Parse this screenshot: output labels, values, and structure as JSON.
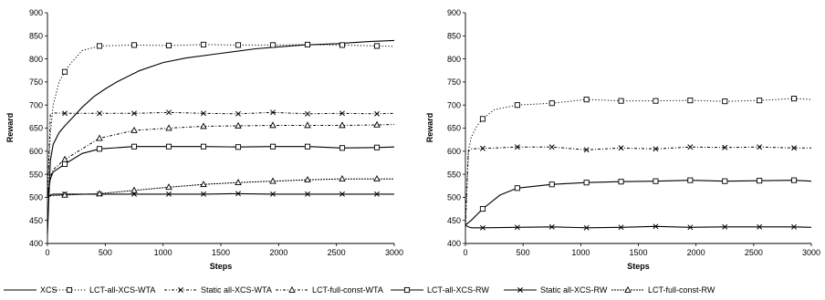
{
  "chart_data": [
    {
      "type": "line",
      "title": "",
      "xlabel": "Steps",
      "ylabel": "Reward",
      "xlim": [
        0,
        3000
      ],
      "ylim": [
        400,
        900
      ],
      "x_ticks": [
        "0",
        "500",
        "1000",
        "1500",
        "2000",
        "2500",
        "3000"
      ],
      "y_ticks": [
        "400",
        "450",
        "500",
        "550",
        "600",
        "650",
        "700",
        "750",
        "800",
        "850",
        "900"
      ],
      "grid": false,
      "series": [
        {
          "name": "XCS",
          "x": [
            0,
            25,
            50,
            100,
            150,
            200,
            300,
            400,
            500,
            600,
            800,
            1000,
            1200,
            1500,
            1800,
            2000,
            2200,
            2500,
            2800,
            3000
          ],
          "y": [
            420,
            580,
            615,
            640,
            655,
            668,
            695,
            718,
            735,
            750,
            775,
            792,
            802,
            812,
            822,
            826,
            830,
            833,
            838,
            840
          ]
        },
        {
          "name": "LCT-all-XCS-WTA",
          "x": [
            0,
            25,
            50,
            100,
            150,
            200,
            300,
            450,
            750,
            1050,
            1350,
            1650,
            1950,
            2250,
            2550,
            2850,
            3000
          ],
          "y": [
            500,
            640,
            700,
            750,
            772,
            790,
            818,
            828,
            830,
            829,
            831,
            830,
            830,
            831,
            830,
            828,
            827
          ]
        },
        {
          "name": "Static all-XCS-WTA",
          "x": [
            0,
            25,
            50,
            150,
            450,
            750,
            1050,
            1350,
            1650,
            1950,
            2250,
            2550,
            2850,
            3000
          ],
          "y": [
            500,
            680,
            683,
            682,
            682,
            682,
            684,
            682,
            681,
            684,
            681,
            682,
            681,
            682
          ]
        },
        {
          "name": "LCT-full-const-WTA",
          "x": [
            0,
            25,
            50,
            150,
            450,
            750,
            1050,
            1350,
            1650,
            1950,
            2250,
            2550,
            2850,
            3000
          ],
          "y": [
            500,
            545,
            560,
            582,
            628,
            645,
            650,
            654,
            655,
            656,
            656,
            656,
            657,
            658
          ]
        },
        {
          "name": "LCT-all-XCS-RW",
          "x": [
            0,
            25,
            50,
            150,
            300,
            450,
            750,
            1050,
            1350,
            1650,
            1950,
            2250,
            2550,
            2850,
            3000
          ],
          "y": [
            500,
            540,
            555,
            572,
            595,
            605,
            610,
            610,
            610,
            609,
            610,
            610,
            607,
            608,
            609
          ]
        },
        {
          "name": "Static all-XCS-RW",
          "x": [
            0,
            25,
            50,
            150,
            450,
            750,
            1050,
            1350,
            1650,
            1950,
            2250,
            2550,
            2850,
            3000
          ],
          "y": [
            500,
            505,
            507,
            507,
            507,
            507,
            507,
            507,
            508,
            507,
            507,
            507,
            507,
            507
          ]
        },
        {
          "name": "LCT-full-const-RW",
          "x": [
            0,
            25,
            50,
            150,
            450,
            750,
            1050,
            1350,
            1650,
            1950,
            2250,
            2550,
            2850,
            3000
          ],
          "y": [
            500,
            503,
            504,
            505,
            508,
            515,
            522,
            528,
            532,
            535,
            538,
            540,
            540,
            540
          ]
        }
      ]
    },
    {
      "type": "line",
      "title": "",
      "xlabel": "Steps",
      "ylabel": "Reward",
      "xlim": [
        0,
        3000
      ],
      "ylim": [
        400,
        900
      ],
      "x_ticks": [
        "0",
        "500",
        "1000",
        "1500",
        "2000",
        "2500",
        "3000"
      ],
      "y_ticks": [
        "400",
        "450",
        "500",
        "550",
        "600",
        "650",
        "700",
        "750",
        "800",
        "850",
        "900"
      ],
      "grid": false,
      "series": [
        {
          "name": "LCT-all-XCS-WTA",
          "x": [
            0,
            25,
            50,
            100,
            150,
            250,
            450,
            750,
            1050,
            1350,
            1650,
            1950,
            2250,
            2550,
            2850,
            3000
          ],
          "y": [
            440,
            600,
            630,
            655,
            670,
            690,
            700,
            704,
            712,
            709,
            709,
            710,
            708,
            710,
            714,
            712
          ]
        },
        {
          "name": "Static all-XCS-WTA",
          "x": [
            0,
            25,
            50,
            150,
            450,
            750,
            1050,
            1350,
            1650,
            1950,
            2250,
            2550,
            2850,
            3000
          ],
          "y": [
            440,
            600,
            605,
            606,
            609,
            609,
            603,
            607,
            605,
            609,
            608,
            609,
            607,
            607
          ]
        },
        {
          "name": "LCT-all-XCS-RW",
          "x": [
            0,
            25,
            50,
            150,
            300,
            450,
            750,
            1050,
            1350,
            1650,
            1950,
            2250,
            2550,
            2850,
            3000
          ],
          "y": [
            440,
            445,
            450,
            475,
            505,
            520,
            528,
            532,
            534,
            535,
            537,
            535,
            536,
            537,
            535
          ]
        },
        {
          "name": "Static all-XCS-RW",
          "x": [
            0,
            25,
            50,
            150,
            450,
            750,
            1050,
            1350,
            1650,
            1950,
            2250,
            2550,
            2850,
            3000
          ],
          "y": [
            440,
            436,
            434,
            434,
            435,
            436,
            434,
            435,
            437,
            435,
            436,
            436,
            436,
            435
          ]
        }
      ]
    }
  ],
  "legend": {
    "placement": "bottom",
    "items": [
      {
        "name": "XCS",
        "dash": "solid",
        "marker": "none"
      },
      {
        "name": "LCT-all-XCS-WTA",
        "dash": "dotted",
        "marker": "square"
      },
      {
        "name": "Static all-XCS-WTA",
        "dash": "dashdot",
        "marker": "x"
      },
      {
        "name": "LCT-full-const-WTA",
        "dash": "dashdot",
        "marker": "triangle"
      },
      {
        "name": "LCT-all-XCS-RW",
        "dash": "solid",
        "marker": "square"
      },
      {
        "name": "Static all-XCS-RW",
        "dash": "solid",
        "marker": "x"
      },
      {
        "name": "LCT-full-const-RW",
        "dash": "hatched",
        "marker": "triangle"
      }
    ]
  },
  "styles": {
    "XCS": {
      "dash": "solid",
      "marker": "none"
    },
    "LCT-all-XCS-WTA": {
      "dash": "dotted",
      "marker": "square"
    },
    "Static all-XCS-WTA": {
      "dash": "dashdot",
      "marker": "x"
    },
    "LCT-full-const-WTA": {
      "dash": "dashdot",
      "marker": "triangle"
    },
    "LCT-all-XCS-RW": {
      "dash": "solid",
      "marker": "square"
    },
    "Static all-XCS-RW": {
      "dash": "solid",
      "marker": "x"
    },
    "LCT-full-const-RW": {
      "dash": "hatched",
      "marker": "triangle"
    }
  },
  "colors": {
    "line": "#000000",
    "axis": "#000000",
    "background": "#ffffff"
  }
}
